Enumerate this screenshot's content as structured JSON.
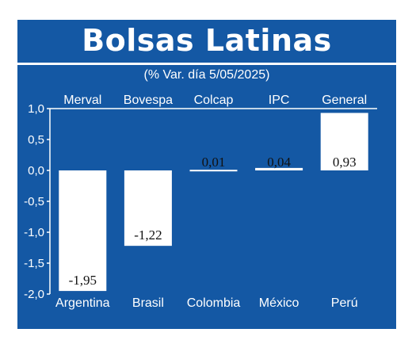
{
  "header": {
    "title": "Bolsas Latinas",
    "subtitle": "(% Var. día 5/05/2025)"
  },
  "colors": {
    "background": "#1458a4",
    "bar": "#ffffff",
    "text": "#ffffff"
  },
  "chart_data": {
    "type": "bar",
    "index_names": [
      "Merval",
      "Bovespa",
      "Colcap",
      "IPC",
      "General"
    ],
    "categories": [
      "Argentina",
      "Brasil",
      "Colombia",
      "México",
      "Perú"
    ],
    "values": [
      -1.95,
      -1.22,
      0.01,
      0.04,
      0.93
    ],
    "value_labels": [
      "-1,95",
      "-1,22",
      "0,01",
      "0,04",
      "0,93"
    ],
    "ylim": [
      -2.0,
      1.0
    ],
    "yticks": [
      1.0,
      0.5,
      0.0,
      -0.5,
      -1.0,
      -1.5,
      -2.0
    ],
    "ytick_labels": [
      "1,0",
      "0,5",
      "0,0",
      "-0,5",
      "-1,0",
      "-1,5",
      "-2,0"
    ],
    "grid": false,
    "legend": "none"
  }
}
